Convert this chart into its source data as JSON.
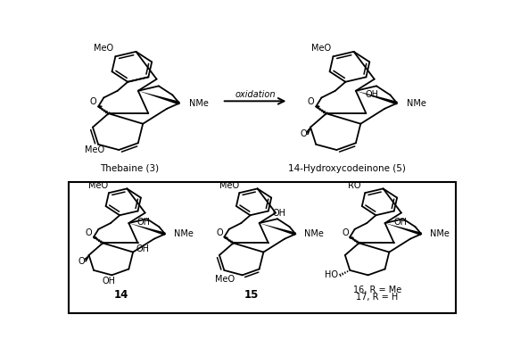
{
  "background_color": "#ffffff",
  "arrow_label": "oxidation",
  "thebaine_label": "Thebaine (3)",
  "hydroxy_label": "14-Hydroxycodeinone (5)",
  "c14_label": "14",
  "c15_label": "15",
  "c16_17_label_1": "16, R = Me",
  "c16_17_label_2": "17, R = H",
  "box_color": "#000000",
  "line_color": "#000000"
}
